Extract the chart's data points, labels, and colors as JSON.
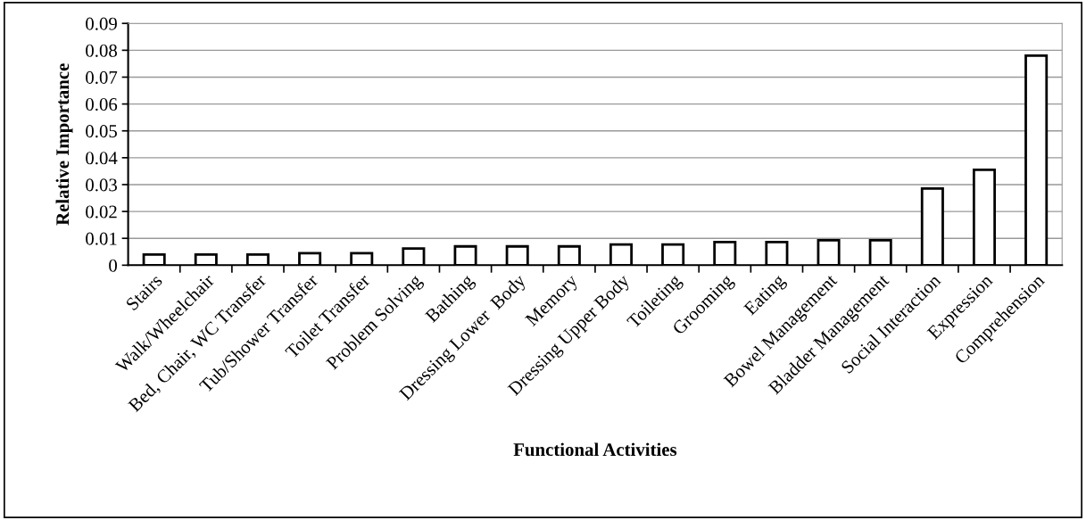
{
  "chart_data": {
    "type": "bar",
    "categories": [
      "Stairs",
      "Walk/Wheelchair",
      "Bed, Chair, WC Transfer",
      "Tub/Shower Transfer",
      "Toilet Transfer",
      "Problem Solving",
      "Bathing",
      "Dressing Lower  Body",
      "Memory",
      "Dressing Upper Body",
      "Toileting",
      "Grooming",
      "Eating",
      "Bowel Management",
      "Bladder Management",
      "Social Interaction",
      "Expression",
      "Comprehension"
    ],
    "values": [
      0.004,
      0.004,
      0.004,
      0.0045,
      0.0045,
      0.0062,
      0.007,
      0.007,
      0.007,
      0.0077,
      0.0077,
      0.0086,
      0.0086,
      0.0093,
      0.0093,
      0.0285,
      0.0355,
      0.078
    ],
    "color": "#ffffff",
    "xlabel": "Functional Activities",
    "ylabel": "Relative Importance",
    "ylim": [
      0,
      0.09
    ],
    "yticks": [
      0,
      0.01,
      0.02,
      0.03,
      0.04,
      0.05,
      0.06,
      0.07,
      0.08,
      0.09
    ],
    "grid": "y",
    "legend": false
  }
}
